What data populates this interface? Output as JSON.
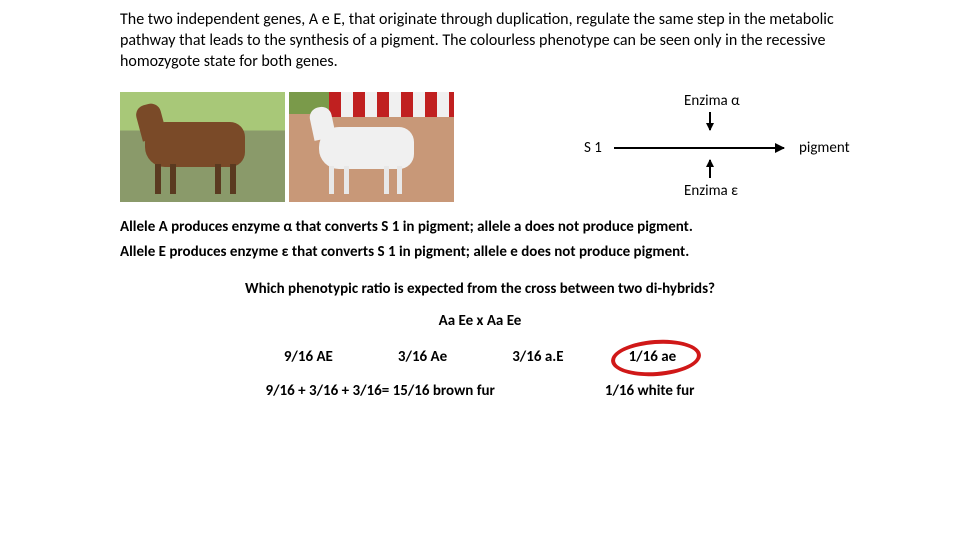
{
  "intro": "The two independent genes, A e E, that originate through duplication, regulate the same step in the metabolic pathway that leads to the synthesis of a pigment. The colourless phenotype can be seen only in the recessive homozygote state for both genes.",
  "pathway": {
    "enzyme_alpha": "Enzima α",
    "enzyme_epsilon": "Enzima ε",
    "substrate": "S 1",
    "product": "pigment"
  },
  "allele_line1": "Allele A produces enzyme α that converts S 1 in pigment; allele a does not produce pigment.",
  "allele_line2": "Allele E produces enzyme ε that converts S 1 in pigment; allele e does not produce pigment.",
  "question": "Which phenotypic ratio is expected from the cross between two di-hybrids?",
  "cross": "Aa Ee  x  Aa Ee",
  "ratios": {
    "r1": "9/16 AE",
    "r2": "3/16 Ae",
    "r3": "3/16 a.E",
    "r4": "1/16 ae"
  },
  "conclusion": {
    "brown": "9/16 + 3/16 + 3/16= 15/16  brown fur",
    "white": "1/16 white fur"
  },
  "horses": {
    "brown_color": "#7a4a28",
    "white_color": "#f0f0f0"
  },
  "highlight_color": "#d01818"
}
